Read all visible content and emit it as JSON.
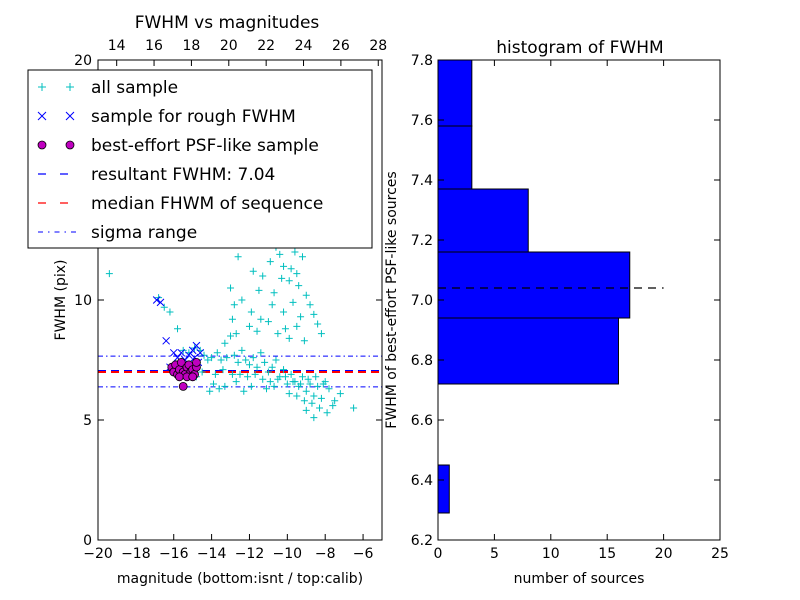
{
  "figure": {
    "left": {
      "title": "FWHM vs magnitudes",
      "xlabel": "magnitude (bottom:isnt / top:calib)",
      "ylabel": "FWHM (pix)",
      "x_ticks": [
        -20,
        -18,
        -16,
        -14,
        -12,
        -10,
        -8,
        -6
      ],
      "x_tick_labels": [
        "−20",
        "−18",
        "−16",
        "−14",
        "−12",
        "−10",
        "−8",
        "−6"
      ],
      "top_ticks": [
        "14",
        "16",
        "18",
        "20",
        "22",
        "24",
        "26",
        "28"
      ],
      "y_ticks": [
        0,
        5,
        10,
        20
      ],
      "y_tick_labels": [
        "0",
        "5",
        "10",
        "20"
      ]
    },
    "right": {
      "title": "histogram of FWHM",
      "xlabel": "number of sources",
      "ylabel": "FWHM of best-effort PSF-like sources",
      "x_ticks": [
        0,
        5,
        10,
        15,
        20,
        25
      ],
      "y_ticks": [
        6.2,
        6.4,
        6.6,
        6.8,
        7.0,
        7.2,
        7.4,
        7.6,
        7.8
      ],
      "y_tick_labels": [
        "6.2",
        "6.4",
        "6.6",
        "6.8",
        "7.0",
        "7.2",
        "7.4",
        "7.6",
        "7.8"
      ]
    },
    "legend": [
      {
        "label": "all sample",
        "marker": "plus",
        "color": "#00bfbf"
      },
      {
        "label": "sample for rough FWHM",
        "marker": "x",
        "color": "#0000ff"
      },
      {
        "label": "best-effort PSF-like sample",
        "marker": "circle",
        "color": "#bf00bf"
      },
      {
        "label": "resultant FWHM: 7.04",
        "marker": "dashed",
        "color": "#0000ff"
      },
      {
        "label": "median FHWM of sequence",
        "marker": "dashed",
        "color": "#ff0000"
      },
      {
        "label": "sigma range",
        "marker": "dashdot",
        "color": "#0000ff"
      }
    ]
  },
  "chart_data": [
    {
      "type": "scatter",
      "title": "FWHM vs magnitudes",
      "xlabel": "magnitude (bottom:isnt / top:calib)",
      "ylabel": "FWHM (pix)",
      "xlim": [
        -20,
        -5
      ],
      "ylim": [
        0,
        20
      ],
      "top_xlim": [
        13.0,
        28.2
      ],
      "series": [
        {
          "name": "all sample",
          "points": [
            [
              -19.4,
              11.1
            ],
            [
              -16.8,
              10.1
            ],
            [
              -16.5,
              9.7
            ],
            [
              -16.2,
              9.5
            ],
            [
              -15.8,
              8.8
            ],
            [
              -15.5,
              7.9
            ],
            [
              -15.2,
              7.8
            ],
            [
              -14.9,
              8.0
            ],
            [
              -14.6,
              7.9
            ],
            [
              -14.4,
              7.7
            ],
            [
              -14.2,
              7.5
            ],
            [
              -14.0,
              7.6
            ],
            [
              -13.7,
              7.8
            ],
            [
              -13.5,
              7.5
            ],
            [
              -13.2,
              7.6
            ],
            [
              -13.0,
              8.5
            ],
            [
              -12.8,
              7.7
            ],
            [
              -12.6,
              7.4
            ],
            [
              -12.4,
              7.9
            ],
            [
              -12.2,
              7.5
            ],
            [
              -12.0,
              7.3
            ],
            [
              -11.8,
              7.6
            ],
            [
              -11.6,
              7.2
            ],
            [
              -11.4,
              7.8
            ],
            [
              -11.2,
              7.4
            ],
            [
              -11.0,
              7.0
            ],
            [
              -10.8,
              7.2
            ],
            [
              -10.6,
              7.5
            ],
            [
              -10.4,
              6.8
            ],
            [
              -10.2,
              7.1
            ],
            [
              -10.0,
              6.5
            ],
            [
              -9.8,
              6.9
            ],
            [
              -9.6,
              6.6
            ],
            [
              -9.4,
              6.4
            ],
            [
              -9.2,
              6.8
            ],
            [
              -9.0,
              6.2
            ],
            [
              -8.8,
              6.5
            ],
            [
              -8.6,
              6.0
            ],
            [
              -8.4,
              6.4
            ],
            [
              -8.2,
              5.9
            ],
            [
              -8.0,
              6.6
            ],
            [
              -7.8,
              6.3
            ],
            [
              -7.5,
              5.8
            ],
            [
              -7.2,
              6.1
            ],
            [
              -6.5,
              5.5
            ],
            [
              -14.8,
              6.8
            ],
            [
              -14.5,
              7.0
            ],
            [
              -13.8,
              6.9
            ],
            [
              -13.4,
              7.1
            ],
            [
              -12.9,
              6.9
            ],
            [
              -12.5,
              6.9
            ],
            [
              -12.1,
              6.8
            ],
            [
              -11.7,
              6.9
            ],
            [
              -11.3,
              6.7
            ],
            [
              -10.9,
              6.6
            ],
            [
              -10.5,
              6.7
            ],
            [
              -10.1,
              6.8
            ],
            [
              -9.7,
              6.6
            ],
            [
              -9.3,
              6.5
            ],
            [
              -8.9,
              6.7
            ],
            [
              -8.5,
              6.8
            ],
            [
              -8.1,
              6.5
            ],
            [
              -13.9,
              6.5
            ],
            [
              -13.3,
              6.4
            ],
            [
              -12.7,
              6.6
            ],
            [
              -14.1,
              6.2
            ],
            [
              -13.6,
              6.3
            ],
            [
              -12.3,
              6.2
            ],
            [
              -11.9,
              6.4
            ],
            [
              -11.1,
              6.3
            ],
            [
              -10.7,
              6.4
            ],
            [
              -9.9,
              6.1
            ],
            [
              -9.5,
              6.0
            ],
            [
              -9.1,
              5.8
            ],
            [
              -8.7,
              5.7
            ],
            [
              -8.3,
              5.5
            ],
            [
              -7.9,
              5.3
            ],
            [
              -7.6,
              5.6
            ],
            [
              -8.6,
              5.1
            ],
            [
              -9.0,
              5.4
            ],
            [
              -12.6,
              11.8
            ],
            [
              -12.2,
              12.5
            ],
            [
              -11.8,
              11.2
            ],
            [
              -11.5,
              10.4
            ],
            [
              -11.2,
              12.8
            ],
            [
              -10.9,
              11.6
            ],
            [
              -10.6,
              12.2
            ],
            [
              -10.3,
              10.9
            ],
            [
              -10.0,
              12.6
            ],
            [
              -9.8,
              11.3
            ],
            [
              -9.6,
              12.0
            ],
            [
              -9.4,
              10.6
            ],
            [
              -9.2,
              11.8
            ],
            [
              -9.0,
              10.2
            ],
            [
              -8.8,
              9.8
            ],
            [
              -8.6,
              9.4
            ],
            [
              -8.4,
              9.0
            ],
            [
              -8.2,
              8.6
            ],
            [
              -12.4,
              10.0
            ],
            [
              -11.9,
              9.5
            ],
            [
              -11.4,
              9.2
            ],
            [
              -10.8,
              9.8
            ],
            [
              -10.2,
              9.5
            ],
            [
              -9.7,
              9.9
            ],
            [
              -9.3,
              9.3
            ],
            [
              -13.0,
              10.5
            ],
            [
              -12.8,
              9.8
            ],
            [
              -12.0,
              8.9
            ],
            [
              -11.6,
              8.7
            ],
            [
              -11.0,
              9.1
            ],
            [
              -10.5,
              8.6
            ],
            [
              -10.1,
              8.8
            ],
            [
              -9.9,
              8.4
            ],
            [
              -9.5,
              8.9
            ],
            [
              -9.1,
              8.3
            ],
            [
              -10.4,
              11.9
            ],
            [
              -9.9,
              10.8
            ],
            [
              -9.7,
              12.4
            ],
            [
              -10.2,
              11.4
            ],
            [
              -9.5,
              11.1
            ],
            [
              -10.7,
              10.3
            ],
            [
              -11.3,
              11.0
            ],
            [
              -12.9,
              9.2
            ],
            [
              -13.3,
              8.2
            ],
            [
              -12.7,
              8.6
            ]
          ]
        },
        {
          "name": "sample for rough FWHM",
          "points": [
            [
              -16.9,
              10.0
            ],
            [
              -16.7,
              9.9
            ],
            [
              -16.4,
              8.3
            ],
            [
              -16.0,
              7.8
            ],
            [
              -15.8,
              7.6
            ],
            [
              -15.6,
              7.8
            ],
            [
              -15.4,
              7.5
            ],
            [
              -15.2,
              7.7
            ],
            [
              -15.0,
              7.9
            ],
            [
              -14.9,
              7.6
            ],
            [
              -14.8,
              8.1
            ],
            [
              -14.7,
              7.4
            ],
            [
              -14.6,
              7.8
            ],
            [
              -16.2,
              7.2
            ],
            [
              -15.9,
              7.1
            ]
          ]
        },
        {
          "name": "best-effort PSF-like sample",
          "points": [
            [
              -16.1,
              7.2
            ],
            [
              -16.0,
              7.0
            ],
            [
              -15.9,
              7.3
            ],
            [
              -15.8,
              6.9
            ],
            [
              -15.7,
              7.1
            ],
            [
              -15.6,
              7.4
            ],
            [
              -15.5,
              7.0
            ],
            [
              -15.4,
              6.9
            ],
            [
              -15.3,
              7.2
            ],
            [
              -15.2,
              7.3
            ],
            [
              -15.1,
              7.0
            ],
            [
              -15.0,
              7.1
            ],
            [
              -14.9,
              6.9
            ],
            [
              -14.8,
              7.2
            ],
            [
              -14.8,
              7.4
            ],
            [
              -15.7,
              6.8
            ],
            [
              -15.3,
              6.8
            ],
            [
              -15.0,
              6.8
            ],
            [
              -15.5,
              6.4
            ]
          ]
        }
      ],
      "hlines": [
        {
          "name": "resultant FWHM: 7.04",
          "y": 7.04,
          "style": "dashed",
          "color": "#0000ff"
        },
        {
          "name": "median FHWM of sequence",
          "y": 7.0,
          "style": "dashed",
          "color": "#ff0000"
        },
        {
          "name": "sigma range upper",
          "y": 7.66,
          "style": "dashdot",
          "color": "#0000ff"
        },
        {
          "name": "sigma range lower",
          "y": 6.38,
          "style": "dashdot",
          "color": "#0000ff"
        }
      ]
    },
    {
      "type": "bar",
      "orientation": "horizontal",
      "title": "histogram of FWHM",
      "xlabel": "number of sources",
      "ylabel": "FWHM of best-effort PSF-like sources",
      "xlim": [
        0,
        25
      ],
      "ylim": [
        6.2,
        7.8
      ],
      "bins": [
        {
          "low": 6.29,
          "high": 6.45,
          "count": 1
        },
        {
          "low": 6.45,
          "high": 6.61,
          "count": 0
        },
        {
          "low": 6.61,
          "high": 6.72,
          "count": 0
        },
        {
          "low": 6.72,
          "high": 6.94,
          "count": 16
        },
        {
          "low": 6.94,
          "high": 7.16,
          "count": 17
        },
        {
          "low": 7.16,
          "high": 7.37,
          "count": 8
        },
        {
          "low": 7.37,
          "high": 7.58,
          "count": 3
        },
        {
          "low": 7.58,
          "high": 7.8,
          "count": 3
        }
      ],
      "hlines": [
        {
          "name": "resultant FWHM",
          "y": 7.04,
          "x_range": [
            0,
            20
          ],
          "style": "dashed",
          "color": "#000000"
        }
      ]
    }
  ]
}
